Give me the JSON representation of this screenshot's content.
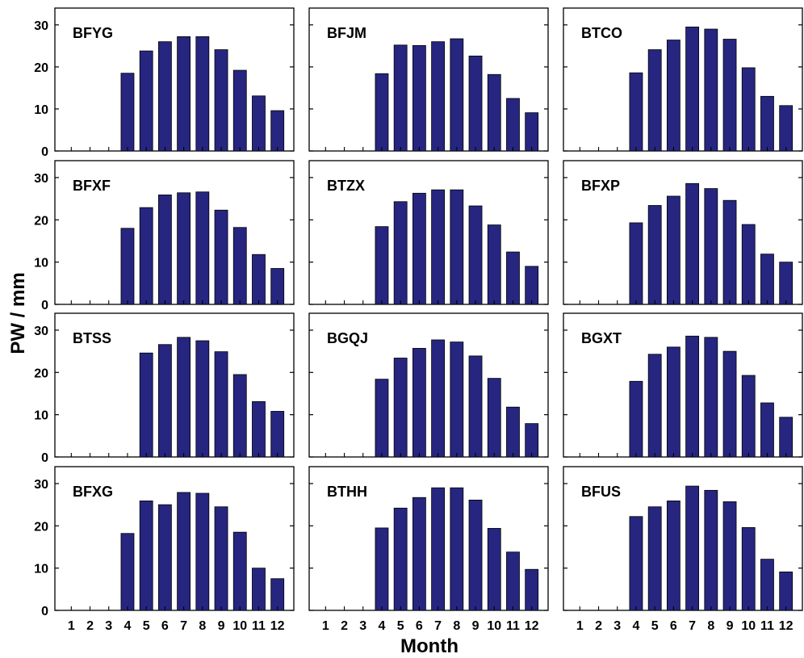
{
  "figure": {
    "ylabel": "PW / mm",
    "xlabel": "Month",
    "bar_color": "#262680",
    "bar_edge": "#000000"
  },
  "chart_data": [
    {
      "type": "bar",
      "title": "BFYG",
      "categories": [
        "1",
        "2",
        "3",
        "4",
        "5",
        "6",
        "7",
        "8",
        "9",
        "10",
        "11",
        "12"
      ],
      "values": [
        null,
        null,
        null,
        18.5,
        23.8,
        26.0,
        27.2,
        27.2,
        24.1,
        19.2,
        13.1,
        9.6
      ],
      "ylim": [
        0,
        34
      ],
      "yticks": [
        0,
        10,
        20,
        30
      ]
    },
    {
      "type": "bar",
      "title": "BFJM",
      "categories": [
        "1",
        "2",
        "3",
        "4",
        "5",
        "6",
        "7",
        "8",
        "9",
        "10",
        "11",
        "12"
      ],
      "values": [
        null,
        null,
        null,
        18.4,
        25.2,
        25.1,
        26.0,
        26.7,
        22.6,
        18.2,
        12.5,
        9.1
      ],
      "ylim": [
        0,
        34
      ],
      "yticks": [
        0,
        10,
        20,
        30
      ]
    },
    {
      "type": "bar",
      "title": "BTCO",
      "categories": [
        "1",
        "2",
        "3",
        "4",
        "5",
        "6",
        "7",
        "8",
        "9",
        "10",
        "11",
        "12"
      ],
      "values": [
        null,
        null,
        null,
        18.6,
        24.1,
        26.4,
        29.5,
        29.0,
        26.6,
        19.8,
        13.0,
        10.8
      ],
      "ylim": [
        0,
        34
      ],
      "yticks": [
        0,
        10,
        20,
        30
      ]
    },
    {
      "type": "bar",
      "title": "BFXF",
      "categories": [
        "1",
        "2",
        "3",
        "4",
        "5",
        "6",
        "7",
        "8",
        "9",
        "10",
        "11",
        "12"
      ],
      "values": [
        null,
        null,
        null,
        18.0,
        22.9,
        25.9,
        26.4,
        26.6,
        22.3,
        18.2,
        11.8,
        8.5
      ],
      "ylim": [
        0,
        34
      ],
      "yticks": [
        0,
        10,
        20,
        30
      ]
    },
    {
      "type": "bar",
      "title": "BTZX",
      "categories": [
        "1",
        "2",
        "3",
        "4",
        "5",
        "6",
        "7",
        "8",
        "9",
        "10",
        "11",
        "12"
      ],
      "values": [
        null,
        null,
        null,
        18.4,
        24.3,
        26.3,
        27.1,
        27.1,
        23.3,
        18.8,
        12.4,
        9.0
      ],
      "ylim": [
        0,
        34
      ],
      "yticks": [
        0,
        10,
        20,
        30
      ]
    },
    {
      "type": "bar",
      "title": "BFXP",
      "categories": [
        "1",
        "2",
        "3",
        "4",
        "5",
        "6",
        "7",
        "8",
        "9",
        "10",
        "11",
        "12"
      ],
      "values": [
        null,
        null,
        null,
        19.3,
        23.4,
        25.6,
        28.6,
        27.4,
        24.6,
        18.9,
        11.9,
        10.0
      ],
      "ylim": [
        0,
        34
      ],
      "yticks": [
        0,
        10,
        20,
        30
      ]
    },
    {
      "type": "bar",
      "title": "BTSS",
      "categories": [
        "1",
        "2",
        "3",
        "4",
        "5",
        "6",
        "7",
        "8",
        "9",
        "10",
        "11",
        "12"
      ],
      "values": [
        null,
        null,
        null,
        null,
        24.6,
        26.6,
        28.3,
        27.5,
        24.9,
        19.5,
        13.1,
        10.8
      ],
      "ylim": [
        0,
        34
      ],
      "yticks": [
        0,
        10,
        20,
        30
      ]
    },
    {
      "type": "bar",
      "title": "BGQJ",
      "categories": [
        "1",
        "2",
        "3",
        "4",
        "5",
        "6",
        "7",
        "8",
        "9",
        "10",
        "11",
        "12"
      ],
      "values": [
        null,
        null,
        null,
        18.4,
        23.4,
        25.7,
        27.7,
        27.2,
        23.9,
        18.6,
        11.8,
        7.9
      ],
      "ylim": [
        0,
        34
      ],
      "yticks": [
        0,
        10,
        20,
        30
      ]
    },
    {
      "type": "bar",
      "title": "BGXT",
      "categories": [
        "1",
        "2",
        "3",
        "4",
        "5",
        "6",
        "7",
        "8",
        "9",
        "10",
        "11",
        "12"
      ],
      "values": [
        null,
        null,
        null,
        17.9,
        24.3,
        26.0,
        28.6,
        28.3,
        25.0,
        19.3,
        12.8,
        9.4
      ],
      "ylim": [
        0,
        34
      ],
      "yticks": [
        0,
        10,
        20,
        30
      ]
    },
    {
      "type": "bar",
      "title": "BFXG",
      "categories": [
        "1",
        "2",
        "3",
        "4",
        "5",
        "6",
        "7",
        "8",
        "9",
        "10",
        "11",
        "12"
      ],
      "values": [
        null,
        null,
        null,
        18.2,
        25.9,
        25.0,
        27.9,
        27.7,
        24.5,
        18.5,
        10.0,
        7.5
      ],
      "ylim": [
        0,
        34
      ],
      "yticks": [
        0,
        10,
        20,
        30
      ]
    },
    {
      "type": "bar",
      "title": "BTHH",
      "categories": [
        "1",
        "2",
        "3",
        "4",
        "5",
        "6",
        "7",
        "8",
        "9",
        "10",
        "11",
        "12"
      ],
      "values": [
        null,
        null,
        null,
        19.5,
        24.2,
        26.7,
        29.0,
        29.0,
        26.1,
        19.4,
        13.8,
        9.7
      ],
      "ylim": [
        0,
        34
      ],
      "yticks": [
        0,
        10,
        20,
        30
      ]
    },
    {
      "type": "bar",
      "title": "BFUS",
      "categories": [
        "1",
        "2",
        "3",
        "4",
        "5",
        "6",
        "7",
        "8",
        "9",
        "10",
        "11",
        "12"
      ],
      "values": [
        null,
        null,
        null,
        22.2,
        24.5,
        25.9,
        29.4,
        28.4,
        25.7,
        19.6,
        12.1,
        9.1
      ],
      "ylim": [
        0,
        34
      ],
      "yticks": [
        0,
        10,
        20,
        30
      ]
    }
  ]
}
